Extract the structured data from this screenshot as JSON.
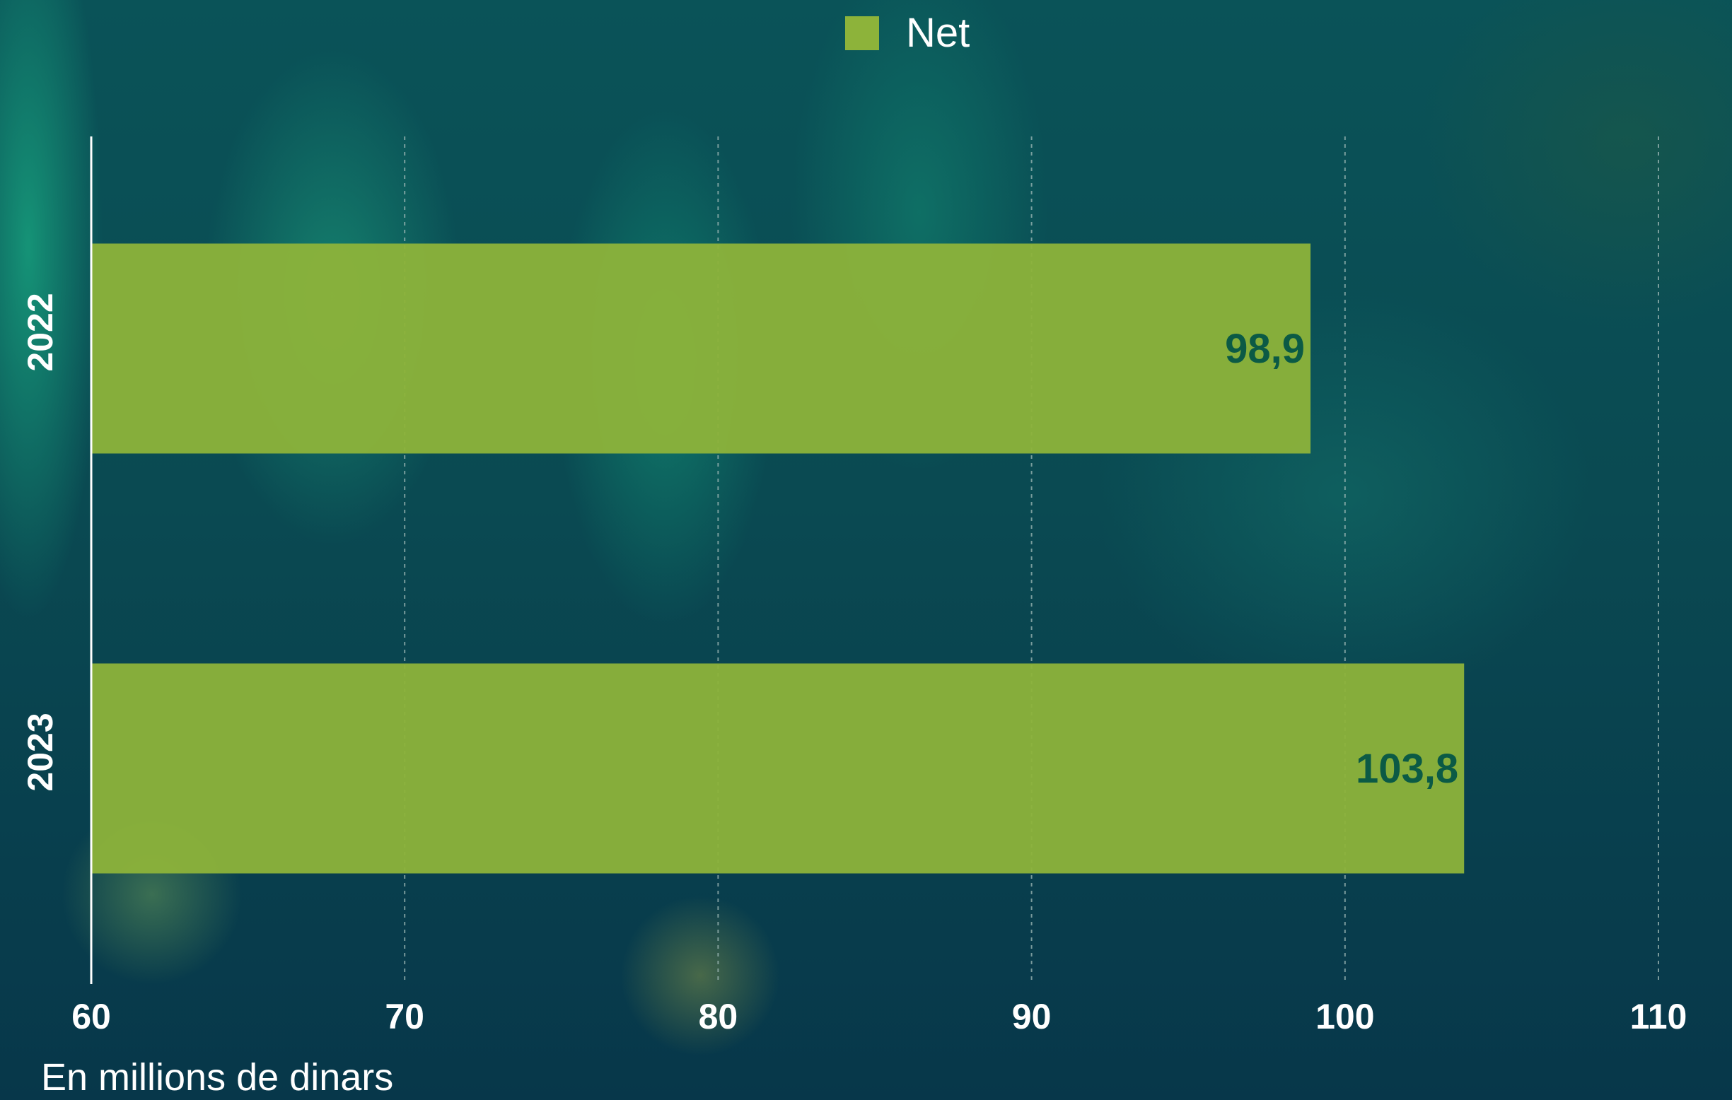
{
  "chart_data": {
    "type": "bar",
    "orientation": "horizontal",
    "categories": [
      "2022",
      "2023"
    ],
    "series": [
      {
        "name": "Net",
        "values": [
          98.9,
          103.8
        ],
        "labels": [
          "98,9",
          "103,8"
        ]
      }
    ],
    "xlim": [
      60,
      110
    ],
    "xticks": [
      60,
      70,
      80,
      90,
      100,
      110
    ],
    "xticklabels": [
      "60",
      "70",
      "80",
      "90",
      "100",
      "110"
    ],
    "grid": "vertical dashed",
    "legend": "top-center",
    "title": "",
    "xlabel": "",
    "ylabel": ""
  },
  "legend": {
    "label": "Net"
  },
  "note": "En millions de dinars",
  "colors": {
    "bar": "#8db33a",
    "value_label": "#0b5a45",
    "text": "#ffffff",
    "grid": "#9fb8b5"
  }
}
